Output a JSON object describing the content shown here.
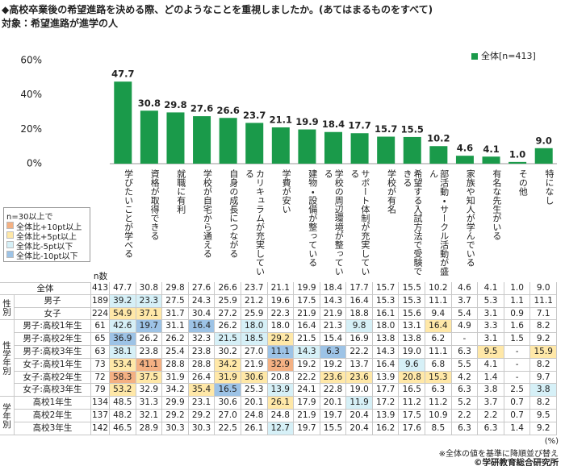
{
  "title": "◆高校卒業後の希望進路を決める際、どのようなことを重視しましたか。(あてはまるものをすべて)",
  "subtitle": "対象：希望進路が進学の人",
  "chart_data": {
    "type": "bar",
    "categories": [
      "学びたいことが学べる",
      "資格が取得できる",
      "就職に有利",
      "学校が自宅から通える",
      "自身の成長につながる",
      "カリキュラムが充実している",
      "学費が安い",
      "建物・設備が整っている",
      "学校の周辺環境が整っている",
      "サポート体制が充実している",
      "学校が有名",
      "希望する入試方法で受験できる",
      "部活動・サークル活動が盛ん",
      "家族や知人が学んでいる",
      "有名な先生がいる",
      "その他",
      "特になし"
    ],
    "series": [
      {
        "name": "全体[n=413]",
        "color": "#1a9a4a",
        "values": [
          47.7,
          30.8,
          29.8,
          27.6,
          26.6,
          23.7,
          21.1,
          19.9,
          18.4,
          17.7,
          15.7,
          15.5,
          10.2,
          4.6,
          4.1,
          1.0,
          9.0
        ],
        "value_labels": [
          "47.7",
          "30.8",
          "29.8",
          "27.6",
          "26.6",
          "23.7",
          "21.1",
          "19.9",
          "18.4",
          "17.7",
          "15.7",
          "15.5",
          "10.2",
          "4.6",
          "4.1",
          "1.0",
          "9.0"
        ]
      }
    ],
    "ylim": [
      0,
      60
    ],
    "yticks": [
      {
        "value": 0,
        "label": "0%"
      },
      {
        "value": 20,
        "label": "20%"
      },
      {
        "value": 40,
        "label": "40%"
      },
      {
        "value": 60,
        "label": "60%"
      }
    ],
    "grid": false,
    "legend": "upper right"
  },
  "table": {
    "n_header": "n数",
    "unit": "(%)",
    "highlight_legend": {
      "title": "n=30以上で",
      "items": [
        {
          "key": "+10",
          "label": "全体比+10pt以上",
          "color": "#f4b183"
        },
        {
          "key": "+5",
          "label": "全体比+5pt以上",
          "color": "#ffe8a8"
        },
        {
          "key": "-5",
          "label": "全体比-5pt以下",
          "color": "#d6f0f7"
        },
        {
          "key": "-10",
          "label": "全体比-10pt以下",
          "color": "#9dc3e6"
        }
      ]
    },
    "total_row": {
      "label": "全体",
      "n": 413,
      "values": [
        "47.7",
        "30.8",
        "29.8",
        "27.6",
        "26.6",
        "23.7",
        "21.1",
        "19.9",
        "18.4",
        "17.7",
        "15.7",
        "15.5",
        "10.2",
        "4.6",
        "4.1",
        "1.0",
        "9.0"
      ],
      "levels": [
        null,
        null,
        null,
        null,
        null,
        null,
        null,
        null,
        null,
        null,
        null,
        null,
        null,
        null,
        null,
        null,
        null
      ]
    },
    "sections": [
      {
        "label": "性別",
        "rows": [
          {
            "label": "男子",
            "n": 189,
            "values": [
              "39.2",
              "23.3",
              "27.5",
              "24.3",
              "25.9",
              "21.2",
              "19.6",
              "17.5",
              "14.3",
              "16.4",
              "15.3",
              "15.3",
              "11.1",
              "3.7",
              "5.3",
              "1.1",
              "11.1"
            ],
            "levels": [
              "-5",
              "-5",
              null,
              null,
              null,
              null,
              null,
              null,
              null,
              null,
              null,
              null,
              null,
              null,
              null,
              null,
              null
            ]
          },
          {
            "label": "女子",
            "n": 224,
            "values": [
              "54.9",
              "37.1",
              "31.7",
              "30.4",
              "27.2",
              "25.9",
              "22.3",
              "21.9",
              "21.9",
              "18.8",
              "16.1",
              "15.6",
              "9.4",
              "5.4",
              "3.1",
              "0.9",
              "7.1"
            ],
            "levels": [
              "+5",
              "+5",
              null,
              null,
              null,
              null,
              null,
              null,
              null,
              null,
              null,
              null,
              null,
              null,
              null,
              null,
              null
            ]
          }
        ]
      },
      {
        "label": "性学年別",
        "rows": [
          {
            "label": "男子:高校1年生",
            "n": 61,
            "values": [
              "42.6",
              "19.7",
              "31.1",
              "16.4",
              "26.2",
              "18.0",
              "18.0",
              "16.4",
              "21.3",
              "9.8",
              "18.0",
              "13.1",
              "16.4",
              "4.9",
              "3.3",
              "1.6",
              "8.2"
            ],
            "levels": [
              "-5",
              "-10",
              null,
              "-10",
              null,
              "-5",
              null,
              null,
              null,
              "-5",
              null,
              null,
              "+5",
              null,
              null,
              null,
              null
            ]
          },
          {
            "label": "男子:高校2年生",
            "n": 65,
            "values": [
              "36.9",
              "26.2",
              "26.2",
              "32.3",
              "21.5",
              "18.5",
              "29.2",
              "21.5",
              "15.4",
              "16.9",
              "13.8",
              "13.8",
              "6.2",
              "-",
              "3.1",
              "1.5",
              "9.2"
            ],
            "levels": [
              "-10",
              null,
              null,
              null,
              "-5",
              "-5",
              "+5",
              null,
              null,
              null,
              null,
              null,
              null,
              null,
              null,
              null,
              null
            ]
          },
          {
            "label": "男子:高校3年生",
            "n": 63,
            "values": [
              "38.1",
              "23.8",
              "25.4",
              "23.8",
              "30.2",
              "27.0",
              "11.1",
              "14.3",
              "6.3",
              "22.2",
              "14.3",
              "19.0",
              "11.1",
              "6.3",
              "9.5",
              "-",
              "15.9"
            ],
            "levels": [
              "-5",
              null,
              null,
              null,
              null,
              null,
              "-10",
              "-5",
              "-10",
              null,
              null,
              null,
              null,
              null,
              "+5",
              null,
              "+5"
            ]
          },
          {
            "label": "女子:高校1年生",
            "n": 73,
            "values": [
              "53.4",
              "41.1",
              "28.8",
              "28.8",
              "34.2",
              "21.9",
              "32.9",
              "19.2",
              "19.2",
              "13.7",
              "16.4",
              "9.6",
              "6.8",
              "5.5",
              "4.1",
              "-",
              "8.2"
            ],
            "levels": [
              "+5",
              "+10",
              null,
              null,
              "+5",
              null,
              "+10",
              null,
              null,
              null,
              null,
              "-5",
              null,
              null,
              null,
              null,
              null
            ]
          },
          {
            "label": "女子:高校2年生",
            "n": 72,
            "values": [
              "58.3",
              "37.5",
              "31.9",
              "26.4",
              "31.9",
              "30.6",
              "20.8",
              "22.2",
              "23.6",
              "23.6",
              "13.9",
              "20.8",
              "15.3",
              "4.2",
              "1.4",
              "-",
              "9.7"
            ],
            "levels": [
              "+10",
              "+5",
              null,
              null,
              "+5",
              "+5",
              null,
              null,
              "+5",
              "+5",
              null,
              "+5",
              "+5",
              null,
              null,
              null,
              null
            ]
          },
          {
            "label": "女子:高校3年生",
            "n": 79,
            "values": [
              "53.2",
              "32.9",
              "34.2",
              "35.4",
              "16.5",
              "25.3",
              "13.9",
              "24.1",
              "22.8",
              "19.0",
              "17.7",
              "16.5",
              "6.3",
              "6.3",
              "3.8",
              "2.5",
              "3.8"
            ],
            "levels": [
              "+5",
              null,
              null,
              "+5",
              "-10",
              null,
              "-5",
              null,
              null,
              null,
              null,
              null,
              null,
              null,
              null,
              null,
              "-5"
            ]
          }
        ]
      },
      {
        "label": "学年別",
        "rows": [
          {
            "label": "高校1年生",
            "n": 134,
            "values": [
              "48.5",
              "31.3",
              "29.9",
              "23.1",
              "30.6",
              "20.1",
              "26.1",
              "17.9",
              "20.1",
              "11.9",
              "17.2",
              "11.2",
              "11.2",
              "5.2",
              "3.7",
              "0.7",
              "8.2"
            ],
            "levels": [
              null,
              null,
              null,
              null,
              null,
              null,
              "+5",
              null,
              null,
              "-5",
              null,
              null,
              null,
              null,
              null,
              null,
              null
            ]
          },
          {
            "label": "高校2年生",
            "n": 137,
            "values": [
              "48.2",
              "32.1",
              "29.2",
              "29.2",
              "27.0",
              "24.8",
              "24.8",
              "21.9",
              "19.7",
              "20.4",
              "13.9",
              "17.5",
              "10.9",
              "2.2",
              "2.2",
              "0.7",
              "9.5"
            ],
            "levels": [
              null,
              null,
              null,
              null,
              null,
              null,
              null,
              null,
              null,
              null,
              null,
              null,
              null,
              null,
              null,
              null,
              null
            ]
          },
          {
            "label": "高校3年生",
            "n": 142,
            "values": [
              "46.5",
              "28.9",
              "30.3",
              "30.3",
              "22.5",
              "26.1",
              "12.7",
              "19.7",
              "15.5",
              "20.4",
              "16.2",
              "17.6",
              "8.5",
              "6.3",
              "6.3",
              "1.4",
              "9.2"
            ],
            "levels": [
              null,
              null,
              null,
              null,
              null,
              null,
              "-5",
              null,
              null,
              null,
              null,
              null,
              null,
              null,
              null,
              null,
              null
            ]
          }
        ]
      }
    ],
    "note": "※全体の値を基準に降順並び替え",
    "credit": "©学研教育総合研究所"
  }
}
